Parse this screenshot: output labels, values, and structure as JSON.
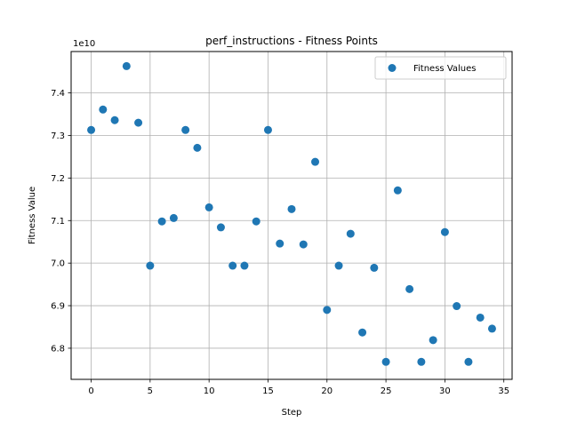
{
  "chart_data": {
    "type": "scatter",
    "title": "perf_instructions - Fitness Points",
    "xlabel": "Step",
    "ylabel": "Fitness Value",
    "y_scale_note": "1e10",
    "xlim": [
      -1.7,
      35.7
    ],
    "ylim": [
      6.7268,
      7.4973
    ],
    "xticks": [
      0,
      5,
      10,
      15,
      20,
      25,
      30,
      35
    ],
    "yticks": [
      6.8,
      6.9,
      7.0,
      7.1,
      7.2,
      7.3,
      7.4
    ],
    "ytick_labels": [
      "6.8",
      "6.9",
      "7.0",
      "7.1",
      "7.2",
      "7.3",
      "7.4"
    ],
    "grid": true,
    "legend_position": "top-right",
    "marker_color": "#1f77b4",
    "series": [
      {
        "name": "Fitness Values",
        "x": [
          0,
          1,
          2,
          3,
          4,
          5,
          6,
          7,
          8,
          9,
          10,
          11,
          12,
          13,
          14,
          15,
          16,
          17,
          18,
          19,
          20,
          21,
          22,
          23,
          24,
          25,
          26,
          27,
          28,
          29,
          30,
          31,
          32,
          33,
          34
        ],
        "y": [
          7.313,
          7.361,
          7.336,
          7.463,
          7.33,
          6.994,
          7.098,
          7.106,
          7.313,
          7.271,
          7.131,
          7.084,
          6.994,
          6.994,
          7.098,
          7.313,
          7.046,
          7.127,
          7.044,
          7.238,
          6.89,
          6.994,
          7.069,
          6.837,
          6.989,
          6.768,
          7.171,
          6.939,
          6.768,
          6.819,
          7.073,
          6.899,
          6.768,
          6.872,
          6.846
        ]
      }
    ]
  }
}
